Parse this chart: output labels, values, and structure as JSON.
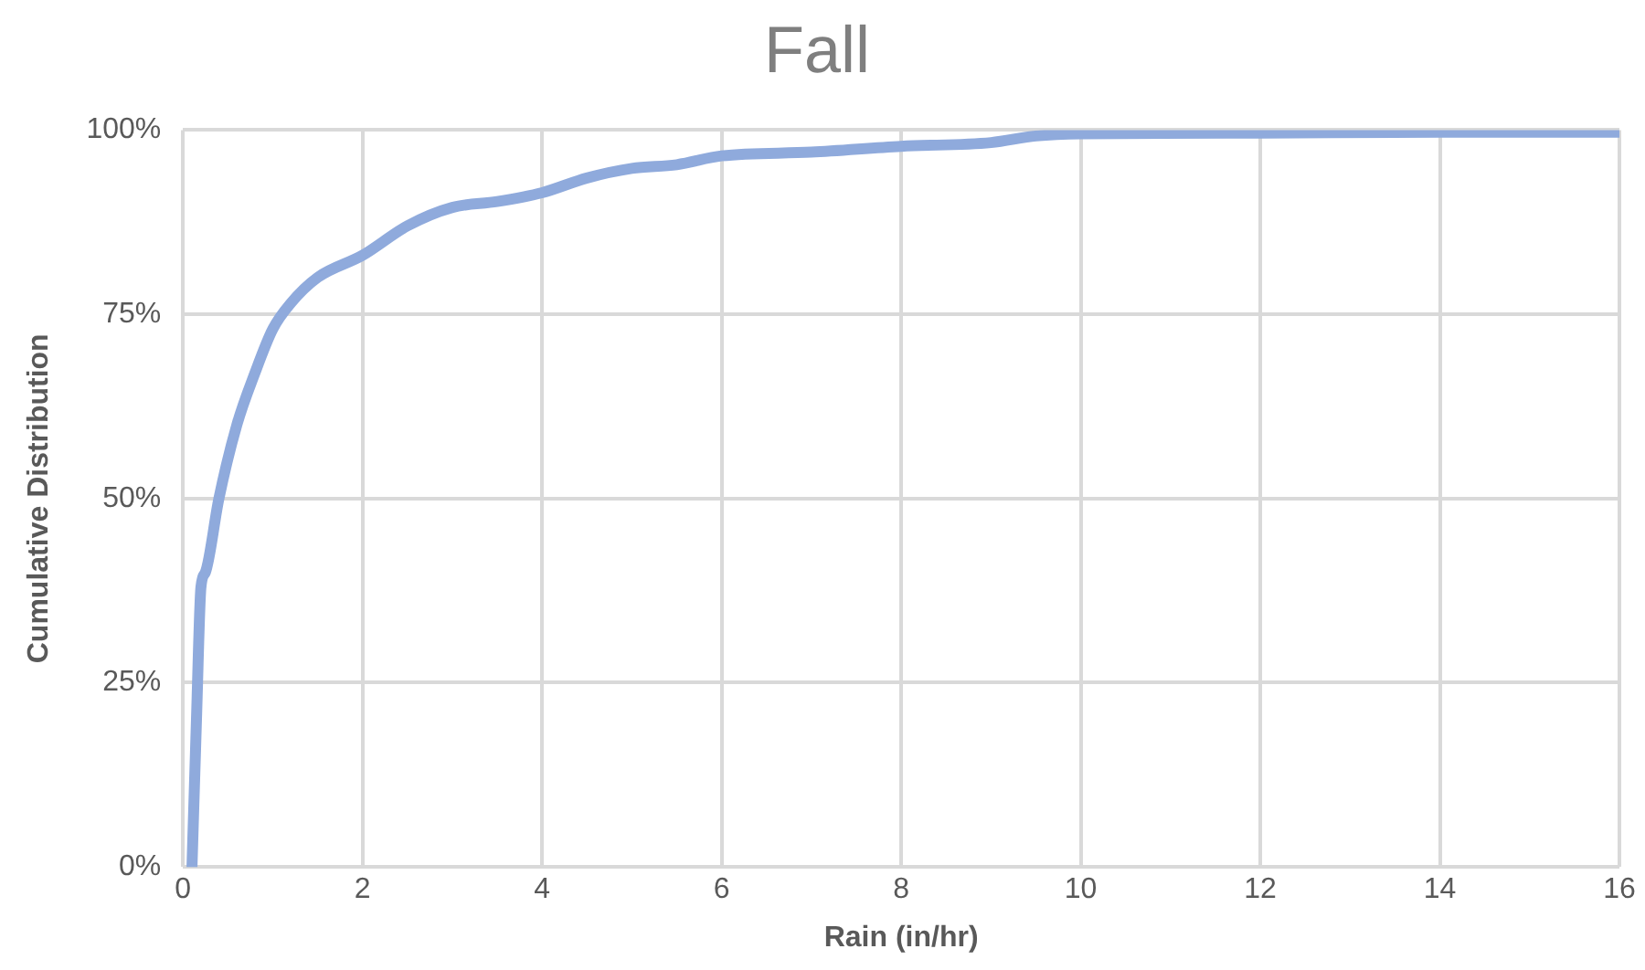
{
  "chart_data": {
    "type": "line",
    "title": "Fall",
    "xlabel": "Rain (in/hr)",
    "ylabel": "Cumulative Distribution",
    "x": [
      0.1,
      0.15,
      0.2,
      0.25,
      0.4,
      0.6,
      0.8,
      1.0,
      1.2,
      1.5,
      2.0,
      2.5,
      3.0,
      3.5,
      4.0,
      4.5,
      5.0,
      5.5,
      6.0,
      7.0,
      8.0,
      9.0,
      9.5,
      10,
      12,
      14,
      16
    ],
    "series": [
      {
        "color": "#8faadc",
        "values": [
          0,
          20,
          38,
          40,
          50,
          60,
          67,
          73,
          76.5,
          80,
          83,
          87,
          89.5,
          90.3,
          91.5,
          93.5,
          94.8,
          95.3,
          96.5,
          97,
          97.8,
          98.3,
          99.2,
          99.5,
          99.6,
          99.7,
          99.7
        ]
      }
    ],
    "xlim": [
      0,
      16
    ],
    "xticks": [
      0,
      2,
      4,
      6,
      8,
      10,
      12,
      14,
      16
    ],
    "ylim": [
      0,
      100
    ],
    "yticks": [
      {
        "value": 0,
        "label": "0%"
      },
      {
        "value": 25,
        "label": "25%"
      },
      {
        "value": 50,
        "label": "50%"
      },
      {
        "value": 75,
        "label": "75%"
      },
      {
        "value": 100,
        "label": "100%"
      }
    ],
    "grid": true,
    "legend": false,
    "marker": "none",
    "line_style": "solid"
  }
}
